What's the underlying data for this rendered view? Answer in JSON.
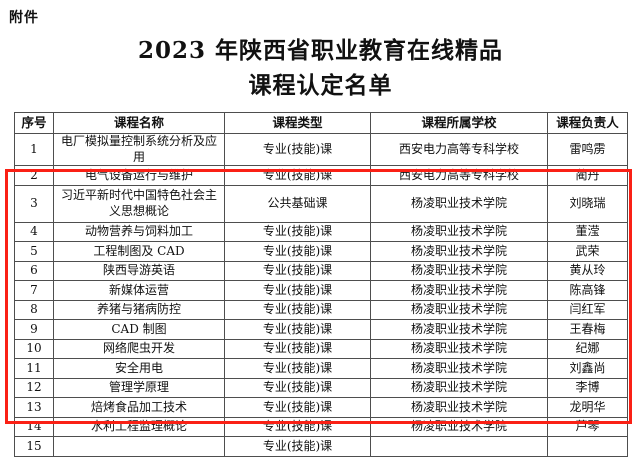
{
  "page": {
    "attachment_label": "附件",
    "title_line1": "2023 年陕西省职业教育在线精品",
    "title_line2": "课程认定名单"
  },
  "annotation": {
    "highlight_color": "#fa2015",
    "highlighted_rows": "3-14"
  },
  "table": {
    "headers": [
      "序号",
      "课程名称",
      "课程类型",
      "课程所属学校",
      "课程负责人"
    ],
    "rows": [
      {
        "seq": "1",
        "name": "电厂模拟量控制系统分析及应用",
        "type": "专业(技能)课",
        "school": "西安电力高等专科学校",
        "leader": "雷鸣雳"
      },
      {
        "seq": "2",
        "name": "电气设备运行与维护",
        "type": "专业(技能)课",
        "school": "西安电力高等专科学校",
        "leader": "蔺丹"
      },
      {
        "seq": "3",
        "name": "习近平新时代中国特色社会主义思想概论",
        "type": "公共基础课",
        "school": "杨凌职业技术学院",
        "leader": "刘晓瑞"
      },
      {
        "seq": "4",
        "name": "动物营养与饲料加工",
        "type": "专业(技能)课",
        "school": "杨凌职业技术学院",
        "leader": "董滢"
      },
      {
        "seq": "5",
        "name": "工程制图及 CAD",
        "type": "专业(技能)课",
        "school": "杨凌职业技术学院",
        "leader": "武荣"
      },
      {
        "seq": "6",
        "name": "陕西导游英语",
        "type": "专业(技能)课",
        "school": "杨凌职业技术学院",
        "leader": "黄从玲"
      },
      {
        "seq": "7",
        "name": "新媒体运营",
        "type": "专业(技能)课",
        "school": "杨凌职业技术学院",
        "leader": "陈高锋"
      },
      {
        "seq": "8",
        "name": "养猪与猪病防控",
        "type": "专业(技能)课",
        "school": "杨凌职业技术学院",
        "leader": "闫红军"
      },
      {
        "seq": "9",
        "name": "CAD 制图",
        "type": "专业(技能)课",
        "school": "杨凌职业技术学院",
        "leader": "王春梅"
      },
      {
        "seq": "10",
        "name": "网络爬虫开发",
        "type": "专业(技能)课",
        "school": "杨凌职业技术学院",
        "leader": "纪娜"
      },
      {
        "seq": "11",
        "name": "安全用电",
        "type": "专业(技能)课",
        "school": "杨凌职业技术学院",
        "leader": "刘鑫尚"
      },
      {
        "seq": "12",
        "name": "管理学原理",
        "type": "专业(技能)课",
        "school": "杨凌职业技术学院",
        "leader": "李博"
      },
      {
        "seq": "13",
        "name": "焙烤食品加工技术",
        "type": "专业(技能)课",
        "school": "杨凌职业技术学院",
        "leader": "龙明华"
      },
      {
        "seq": "14",
        "name": "水利工程监理概论",
        "type": "专业(技能)课",
        "school": "杨凌职业技术学院",
        "leader": "芦琴"
      },
      {
        "seq": "15",
        "name": "",
        "type": "专业(技能)课",
        "school": "",
        "leader": ""
      }
    ]
  }
}
